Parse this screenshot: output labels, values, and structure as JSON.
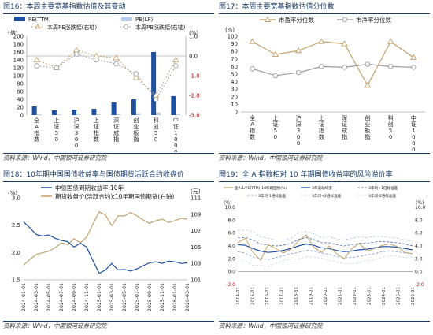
{
  "colors": {
    "navy": "#1e4fa1",
    "lightblue": "#b7c9e6",
    "tan": "#c4a06b",
    "gray": "#9a9a9a",
    "title": "#1b3d6b",
    "red": "#c00000"
  },
  "chart_data": [
    {
      "id": "fig16",
      "type": "bar",
      "title": "图16：本周主要宽基指数估值及其变动",
      "source": "资料来源：Wind，中国银河证券研究院",
      "categories": [
        "全A指数",
        "上证50",
        "沪深300",
        "上证指数",
        "深证成指",
        "创业板指",
        "科创50",
        "中证1000"
      ],
      "left_unit": "(倍)",
      "right_unit": "(%)",
      "ylim": [
        0,
        200
      ],
      "yticks": [
        "0",
        "20",
        "40",
        "60",
        "80",
        "100",
        "120",
        "140",
        "160",
        "180",
        "200"
      ],
      "y2lim": [
        -3.0,
        1.0
      ],
      "y2ticks": [
        "1.0",
        "0.0",
        "-1.0",
        "-2.0",
        "-3.0"
      ],
      "legend": [
        "PE(TTM)",
        "PB(LF)",
        "本周PE涨跌幅(右轴)",
        "本周PB涨跌幅(右轴)"
      ],
      "series": [
        {
          "name": "PE(TTM)",
          "axis": "left",
          "values": [
            22,
            12,
            14,
            16,
            32,
            40,
            160,
            48
          ]
        },
        {
          "name": "PB(LF)",
          "axis": "left",
          "values": [
            1.9,
            1.2,
            1.4,
            1.4,
            2.3,
            4.8,
            6.5,
            2.4
          ]
        },
        {
          "name": "本周PE涨跌幅(右轴)",
          "axis": "right",
          "values": [
            -0.2,
            -0.6,
            0.3,
            0.0,
            -0.1,
            -1.1,
            -2.0,
            -0.2
          ]
        },
        {
          "name": "本周PB涨跌幅(右轴)",
          "axis": "right",
          "values": [
            -0.5,
            -0.6,
            0.1,
            -0.2,
            -0.4,
            -0.9,
            -2.2,
            -0.5
          ]
        }
      ]
    },
    {
      "id": "fig17",
      "type": "line",
      "title": "图17：本周主要宽基指数估值分位数",
      "source": "资料来源：Wind，中国银河证券研究院",
      "categories": [
        "全A指数",
        "上证50",
        "沪深300",
        "上证指数",
        "深证成指",
        "创业板指",
        "科创50",
        "中证1000"
      ],
      "unit": "(%)",
      "ylim": [
        0,
        100
      ],
      "yticks": [
        "0",
        "10",
        "20",
        "30",
        "40",
        "50",
        "60",
        "70",
        "80",
        "90",
        "100"
      ],
      "legend": [
        "市盈率分位数",
        "市净率分位数"
      ],
      "series": [
        {
          "name": "市盈率分位数",
          "values": [
            93,
            76,
            81,
            93,
            90,
            35,
            93,
            72
          ]
        },
        {
          "name": "市净率分位数",
          "values": [
            57,
            48,
            52,
            60,
            59,
            63,
            60,
            59
          ]
        }
      ]
    },
    {
      "id": "fig18",
      "type": "line",
      "title": "图18：10年期中国国债收益率与国债期货活跃合约收盘价",
      "source": "资料来源：Wind，中国银河证券研究院",
      "left_unit": "(%)",
      "right_unit": "(元)",
      "ylim": [
        1.5,
        3.0
      ],
      "yticks": [
        "1.5",
        "2.0",
        "2.5",
        "3.0"
      ],
      "y2lim": [
        101,
        111
      ],
      "y2ticks": [
        "101",
        "103",
        "105",
        "107",
        "109",
        "111"
      ],
      "xticks": [
        "2024-01-01",
        "2024-03-01",
        "2024-05-01",
        "2024-07-01",
        "2024-09-01",
        "2024-11-01",
        "2025-01-01",
        "2025-03-01",
        "2025-05-01",
        "2025-07-01",
        "2025-09-01",
        "2025-11-01",
        "2026-01-01",
        "2026-03-01"
      ],
      "legend": [
        "中债国债到期收益率:10年",
        "期货收盘价(活跃合约):10年期国债期货(右轴)"
      ],
      "series": [
        {
          "name": "中债国债到期收益率:10年",
          "axis": "left",
          "x": [
            "2024-01-01",
            "2024-02-01",
            "2024-03-01",
            "2024-04-01",
            "2024-05-01",
            "2024-06-01",
            "2024-07-01",
            "2024-08-01",
            "2024-09-01",
            "2024-10-01",
            "2024-11-01",
            "2024-12-01",
            "2025-01-01",
            "2025-02-01",
            "2025-03-01",
            "2025-04-01",
            "2025-05-01",
            "2025-06-01",
            "2025-07-01",
            "2025-08-01",
            "2025-09-01",
            "2025-10-01",
            "2025-11-01",
            "2025-12-01",
            "2026-01-01",
            "2026-02-01",
            "2026-03-01"
          ],
          "y": [
            2.56,
            2.45,
            2.33,
            2.3,
            2.32,
            2.26,
            2.22,
            2.2,
            2.1,
            2.17,
            2.1,
            1.85,
            1.62,
            1.68,
            1.8,
            1.68,
            1.69,
            1.66,
            1.7,
            1.76,
            1.81,
            1.83,
            1.8,
            1.84,
            1.83,
            1.8,
            1.81
          ]
        },
        {
          "name": "期货收盘价(活跃合约):10年期国债期货(右轴)",
          "axis": "right",
          "x": [
            "2024-01-01",
            "2024-02-01",
            "2024-03-01",
            "2024-04-01",
            "2024-05-01",
            "2024-06-01",
            "2024-07-01",
            "2024-08-01",
            "2024-09-01",
            "2024-10-01",
            "2024-11-01",
            "2024-12-01",
            "2025-01-01",
            "2025-02-01",
            "2025-03-01",
            "2025-04-01",
            "2025-05-01",
            "2025-06-01",
            "2025-07-01",
            "2025-08-01",
            "2025-09-01",
            "2025-10-01",
            "2025-11-01",
            "2025-12-01",
            "2026-01-01",
            "2026-02-01",
            "2026-03-01"
          ],
          "y": [
            102.8,
            103.5,
            104.1,
            104.3,
            104.5,
            104.9,
            105.5,
            105.3,
            106.0,
            105.5,
            106.2,
            107.8,
            109.3,
            108.9,
            107.6,
            108.8,
            108.8,
            109.2,
            108.8,
            108.3,
            107.9,
            108.2,
            108.4,
            108.0,
            108.2,
            108.5,
            108.4
          ]
        }
      ]
    },
    {
      "id": "fig19",
      "type": "line",
      "title": "图19：全 A 指数相对 10 年期国债收益率的风险溢价率",
      "source": "资料来源：Wind，中国银河证券研究院",
      "left_unit": "(%)",
      "right_unit": "(%)",
      "ylim": [
        -2.0,
        10.0
      ],
      "yticks": [
        "-2.0",
        "0.0",
        "2.0",
        "4.0",
        "6.0",
        "8.0",
        "10.0"
      ],
      "xticks": [
        "2014-01",
        "2015-01",
        "2016-01",
        "2017-01",
        "2018-01",
        "2019-01",
        "2020-01",
        "2021-01",
        "2022-01",
        "2023-01",
        "2024-01",
        "2025-01",
        "2026-01"
      ],
      "legend": [
        "全A:1/PE(TTM)-10年期国债(%)",
        "3年滚动均值",
        "3年均+1倍标准差",
        "3年均-1倍标准差",
        "3年均+2倍标准差",
        "3年均-2倍标准差"
      ],
      "series": [
        {
          "name": "全A:1/PE(TTM)-10年期国债(%)",
          "values": [
            4.5,
            5.2,
            3.0,
            1.8,
            4.2,
            3.6,
            2.9,
            3.5,
            4.8,
            5.7,
            3.8,
            3.0,
            4.0,
            2.8,
            2.0,
            3.6,
            4.4,
            3.2,
            3.6,
            4.1,
            4.3,
            3.9,
            3.0,
            2.8
          ]
        },
        {
          "name": "3年滚动均值",
          "values": [
            4.2,
            4.1,
            3.6,
            3.2,
            3.0,
            3.1,
            3.3,
            3.6,
            4.0,
            4.3,
            4.1,
            3.7,
            3.6,
            3.3,
            3.1,
            3.2,
            3.4,
            3.5,
            3.7,
            3.9,
            3.9,
            3.8,
            3.6,
            3.4
          ]
        },
        {
          "name": "3年均+1倍标准差",
          "values": [
            5.3,
            5.3,
            4.9,
            4.3,
            4.1,
            4.0,
            4.1,
            4.4,
            5.0,
            5.3,
            5.0,
            4.5,
            4.5,
            4.2,
            4.0,
            4.2,
            4.4,
            4.4,
            4.6,
            4.7,
            4.6,
            4.5,
            4.3,
            4.0
          ]
        },
        {
          "name": "3年均-1倍标准差",
          "values": [
            3.1,
            2.9,
            2.3,
            2.1,
            1.9,
            2.2,
            2.5,
            2.8,
            3.0,
            3.3,
            3.2,
            2.9,
            2.7,
            2.4,
            2.2,
            2.2,
            2.4,
            2.6,
            2.8,
            3.1,
            3.2,
            3.1,
            2.9,
            2.8
          ]
        },
        {
          "name": "3年均+2倍标准差",
          "values": [
            6.4,
            6.5,
            6.2,
            5.4,
            5.2,
            4.9,
            4.9,
            5.2,
            6.0,
            6.3,
            5.9,
            5.3,
            5.4,
            5.1,
            4.9,
            5.2,
            5.4,
            5.3,
            5.5,
            5.5,
            5.3,
            5.2,
            5.0,
            4.6
          ]
        },
        {
          "name": "3年均-2倍标准差",
          "values": [
            2.0,
            1.7,
            1.0,
            1.0,
            0.8,
            1.3,
            1.7,
            2.0,
            2.0,
            2.3,
            2.3,
            2.1,
            1.8,
            1.5,
            1.3,
            1.2,
            1.4,
            1.7,
            1.9,
            2.3,
            2.5,
            2.4,
            2.2,
            2.2
          ]
        }
      ]
    }
  ]
}
